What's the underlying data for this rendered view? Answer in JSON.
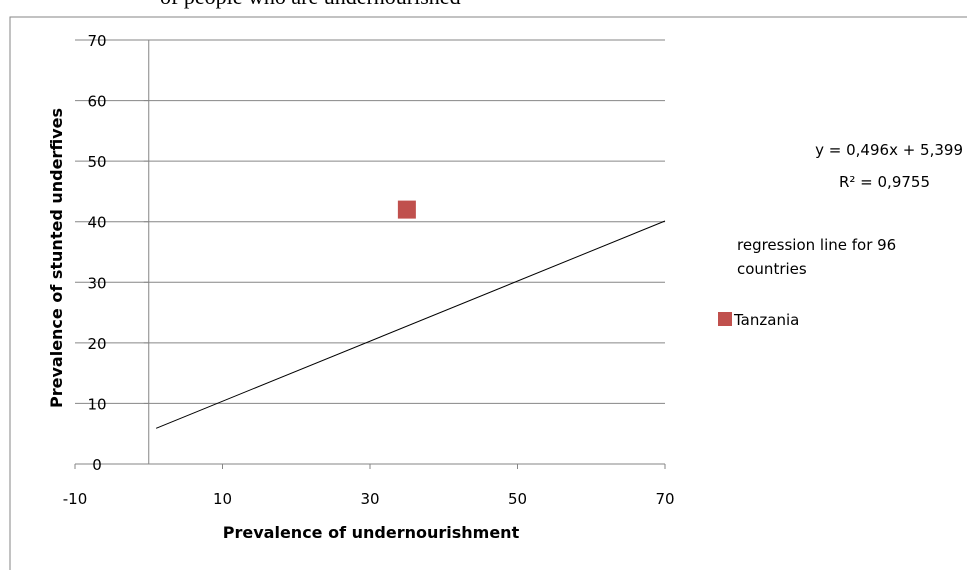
{
  "header_fragment": "of people who are undernourished",
  "chart_data": {
    "type": "scatter",
    "title": "",
    "xlabel": "Prevalence of undernourishment",
    "ylabel": "Prevalence of stunted underfives",
    "xlim": [
      -10,
      70
    ],
    "ylim": [
      0,
      70
    ],
    "x_ticks": [
      -10,
      10,
      30,
      50,
      70
    ],
    "y_ticks": [
      0,
      10,
      20,
      30,
      40,
      50,
      60,
      70
    ],
    "grid": "horizontal",
    "regression": {
      "x_range": [
        1,
        70
      ],
      "slope": 0.496,
      "intercept": 5.399,
      "equation": "y = 0,496x + 5,399",
      "r2": "R² = 0,9755",
      "label": "regression line for 96 countries"
    },
    "series": [
      {
        "name": "Tanzania",
        "color": "#C0504D",
        "points": [
          {
            "x": 35,
            "y": 42
          }
        ]
      }
    ],
    "colors": {
      "line": "#000000",
      "grid": "#868686",
      "axis": "#868686"
    },
    "legend_placement": "right"
  }
}
